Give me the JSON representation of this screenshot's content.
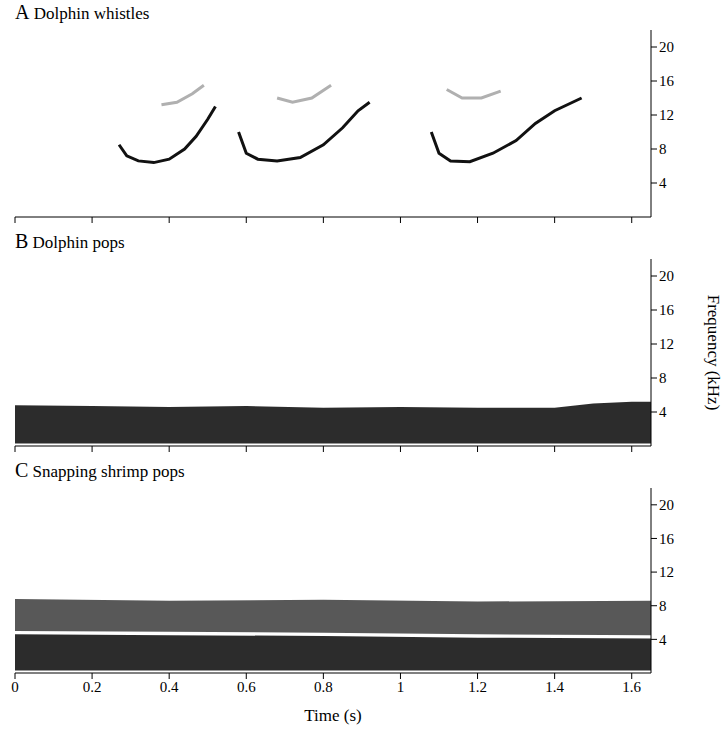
{
  "chart_data": [
    {
      "type": "line",
      "panel_label": "A",
      "title": "Dolphin whistles",
      "xlim": [
        0,
        1.65
      ],
      "xticks": [
        0,
        0.2,
        0.4,
        0.6,
        0.8,
        1.0,
        1.2,
        1.4,
        1.6
      ],
      "ylim": [
        0,
        22
      ],
      "yticks": [
        4,
        8,
        12,
        16,
        20
      ],
      "grid": false,
      "tick_labels": "y",
      "series": [
        {
          "color": "#111111",
          "x": [
            0.27,
            0.29,
            0.32,
            0.36,
            0.4,
            0.44,
            0.47,
            0.5,
            0.52
          ],
          "values": [
            8.5,
            7.2,
            6.6,
            6.4,
            6.8,
            8,
            9.5,
            11.5,
            13
          ]
        },
        {
          "color": "#111111",
          "x": [
            0.58,
            0.6,
            0.63,
            0.68,
            0.74,
            0.8,
            0.85,
            0.89,
            0.92
          ],
          "values": [
            10,
            7.5,
            6.8,
            6.6,
            7,
            8.5,
            10.5,
            12.5,
            13.5
          ]
        },
        {
          "color": "#111111",
          "x": [
            1.08,
            1.1,
            1.13,
            1.18,
            1.24,
            1.3,
            1.35,
            1.4,
            1.47
          ],
          "values": [
            10,
            7.5,
            6.6,
            6.5,
            7.5,
            9,
            11,
            12.5,
            14
          ]
        },
        {
          "color": "#b0b0b0",
          "x": [
            0.38,
            0.42,
            0.46,
            0.49
          ],
          "values": [
            13.2,
            13.5,
            14.5,
            15.5
          ]
        },
        {
          "color": "#b0b0b0",
          "x": [
            0.68,
            0.72,
            0.77,
            0.82
          ],
          "values": [
            14,
            13.5,
            14,
            15.5
          ]
        },
        {
          "color": "#b0b0b0",
          "x": [
            1.12,
            1.16,
            1.21,
            1.26
          ],
          "values": [
            15,
            14,
            14,
            14.8
          ]
        }
      ]
    },
    {
      "type": "area",
      "panel_label": "B",
      "title": "Dolphin pops",
      "y_label": "Frequency (kHz)",
      "xlim": [
        0,
        1.65
      ],
      "xticks": [
        0,
        0.2,
        0.4,
        0.6,
        0.8,
        1.0,
        1.2,
        1.4,
        1.6
      ],
      "ylim": [
        0,
        22
      ],
      "yticks": [
        4,
        8,
        12,
        16,
        20
      ],
      "grid": false,
      "tick_labels": "y",
      "x": [
        0,
        0.2,
        0.4,
        0.6,
        0.8,
        1.0,
        1.2,
        1.4,
        1.5,
        1.6,
        1.65
      ],
      "series": [
        {
          "color": "#1a1a1a",
          "lower": [
            0.3,
            0.3,
            0.3,
            0.3,
            0.3,
            0.3,
            0.3,
            0.3,
            0.3,
            0.3,
            0.3
          ],
          "upper": [
            4.8,
            4.7,
            4.6,
            4.7,
            4.5,
            4.6,
            4.5,
            4.5,
            5.0,
            5.2,
            5.2
          ]
        }
      ]
    },
    {
      "type": "area",
      "panel_label": "C",
      "title": "Snapping shrimp pops",
      "x_label": "Time (s)",
      "xlim": [
        0,
        1.65
      ],
      "xticks": [
        0,
        0.2,
        0.4,
        0.6,
        0.8,
        1.0,
        1.2,
        1.4,
        1.6
      ],
      "ylim": [
        0,
        22
      ],
      "yticks": [
        4,
        8,
        12,
        16,
        20
      ],
      "grid": false,
      "x": [
        0,
        0.4,
        0.8,
        1.2,
        1.65
      ],
      "series": [
        {
          "color": "#1a1a1a",
          "lower": [
            0.3,
            0.3,
            0.3,
            0.3,
            0.3
          ],
          "upper": [
            4.6,
            4.5,
            4.4,
            4.2,
            4.1
          ]
        },
        {
          "color": "#4a4a4a",
          "lower": [
            5.0,
            4.9,
            4.8,
            4.6,
            4.5
          ],
          "upper": [
            8.8,
            8.6,
            8.7,
            8.5,
            8.6
          ]
        }
      ]
    }
  ]
}
